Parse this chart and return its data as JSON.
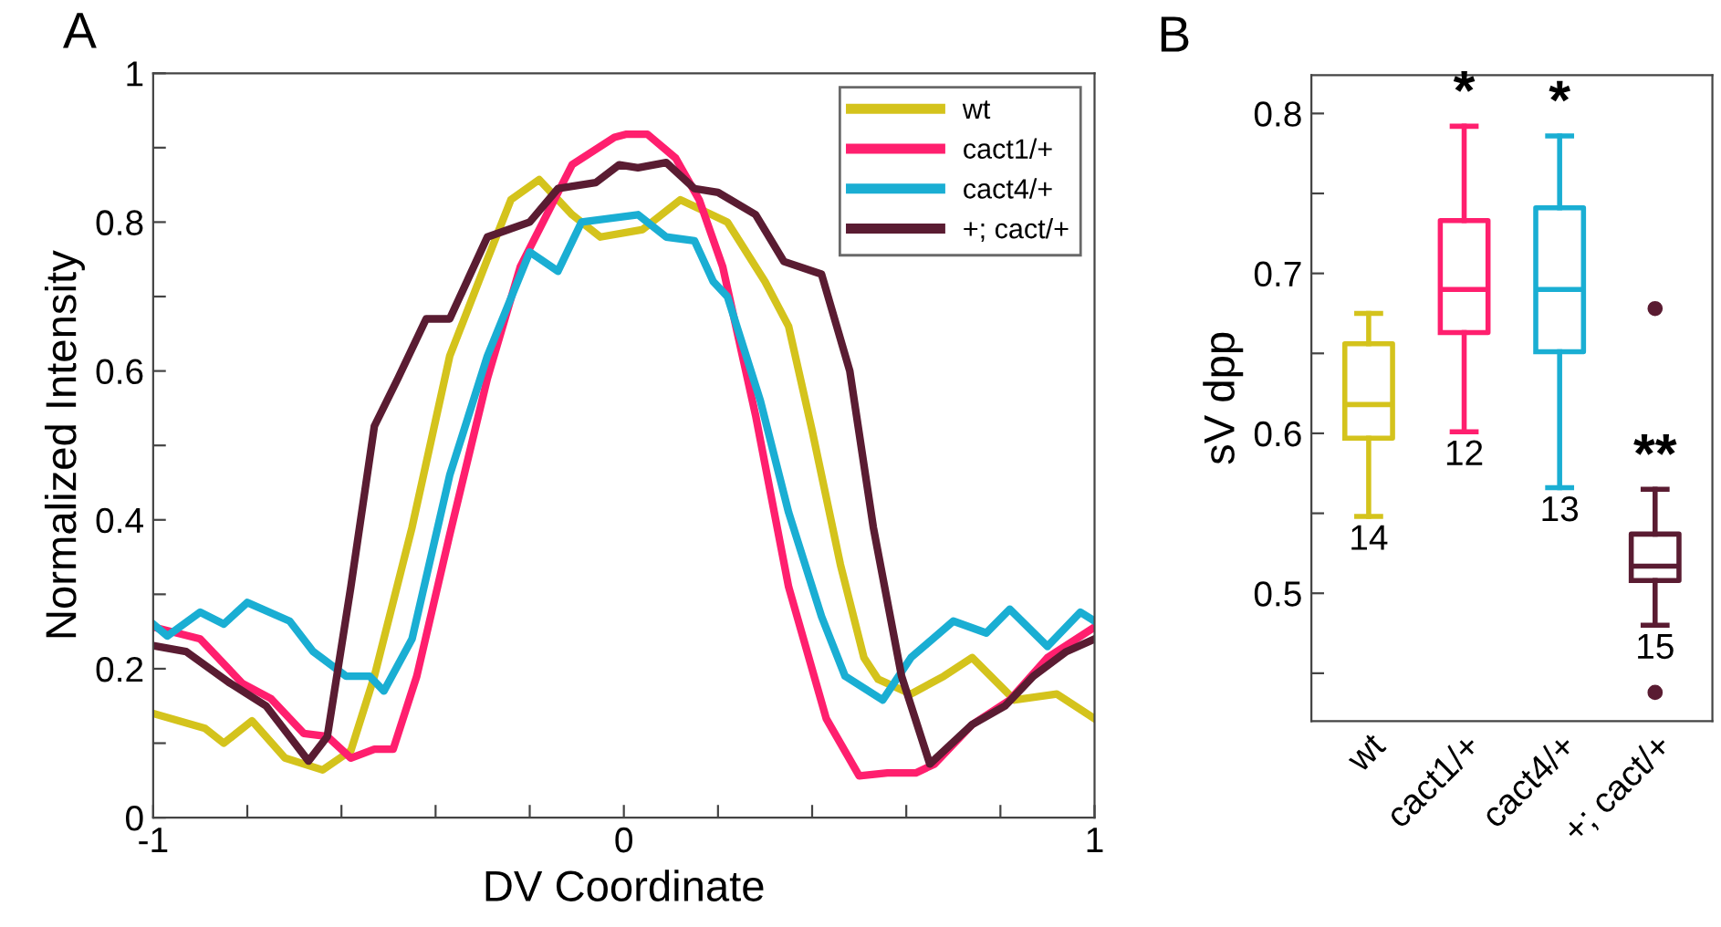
{
  "chart_data": [
    {
      "type": "line",
      "title": "A",
      "xlabel": "DV Coordinate",
      "ylabel": "Normalized Intensity",
      "xlim": [
        -1,
        1
      ],
      "xticks": [
        -1,
        {
          "value": -0.8,
          "label": null
        },
        {
          "value": -0.6,
          "label": null
        },
        {
          "value": -0.4,
          "label": null
        },
        {
          "value": -0.2,
          "label": null
        },
        0,
        {
          "value": 0.2,
          "label": null
        },
        {
          "value": 0.4,
          "label": null
        },
        {
          "value": 0.6,
          "label": null
        },
        {
          "value": 0.8,
          "label": null
        },
        1
      ],
      "ylim": [
        0,
        1
      ],
      "yticks": [
        0,
        {
          "value": 0.1,
          "label": null
        },
        0.2,
        {
          "value": 0.3,
          "label": null
        },
        0.4,
        {
          "value": 0.5,
          "label": null
        },
        0.6,
        {
          "value": 0.7,
          "label": null
        },
        0.8,
        {
          "value": 0.9,
          "label": null
        },
        1
      ],
      "legend": "top right",
      "grid": false,
      "marker": "none",
      "line_style": "solid",
      "series": [
        {
          "name": "wt",
          "color": "#d4c31c",
          "x": [
            -1,
            -0.89,
            -0.85,
            -0.79,
            -0.72,
            -0.64,
            -0.58,
            -0.53,
            -0.45,
            -0.37,
            -0.29,
            -0.24,
            -0.18,
            -0.11,
            -0.05,
            0.04,
            0.12,
            0.22,
            0.3,
            0.35,
            0.4,
            0.46,
            0.51,
            0.54,
            0.61,
            0.68,
            0.74,
            0.83,
            0.92,
            1
          ],
          "values": [
            0.14,
            0.12,
            0.1,
            0.13,
            0.08,
            0.064,
            0.09,
            0.19,
            0.39,
            0.62,
            0.75,
            0.83,
            0.857,
            0.81,
            0.78,
            0.79,
            0.83,
            0.8,
            0.72,
            0.66,
            0.52,
            0.34,
            0.215,
            0.186,
            0.166,
            0.19,
            0.215,
            0.158,
            0.166,
            0.133
          ]
        },
        {
          "name": "cact1/+",
          "color": "#ff1f6e",
          "x": [
            -1,
            -0.9,
            -0.81,
            -0.75,
            -0.68,
            -0.63,
            -0.58,
            -0.53,
            -0.49,
            -0.44,
            -0.37,
            -0.29,
            -0.22,
            -0.11,
            -0.02,
            0.004,
            0.05,
            0.11,
            0.16,
            0.21,
            0.28,
            0.35,
            0.43,
            0.5,
            0.56,
            0.62,
            0.66,
            0.74,
            0.82,
            0.9,
            1
          ],
          "values": [
            0.256,
            0.24,
            0.18,
            0.16,
            0.113,
            0.109,
            0.08,
            0.092,
            0.092,
            0.19,
            0.38,
            0.59,
            0.74,
            0.877,
            0.914,
            0.918,
            0.918,
            0.886,
            0.83,
            0.74,
            0.54,
            0.31,
            0.133,
            0.056,
            0.06,
            0.06,
            0.072,
            0.125,
            0.158,
            0.215,
            0.256
          ]
        },
        {
          "name": "cact4/+",
          "color": "#1aaed3",
          "x": [
            -1,
            -0.97,
            -0.9,
            -0.85,
            -0.8,
            -0.71,
            -0.66,
            -0.59,
            -0.54,
            -0.51,
            -0.45,
            -0.37,
            -0.29,
            -0.2,
            -0.14,
            -0.09,
            0.03,
            0.09,
            0.15,
            0.19,
            0.22,
            0.29,
            0.35,
            0.42,
            0.47,
            0.55,
            0.61,
            0.7,
            0.77,
            0.82,
            0.9,
            0.97,
            1
          ],
          "values": [
            0.26,
            0.244,
            0.276,
            0.26,
            0.289,
            0.264,
            0.223,
            0.19,
            0.19,
            0.17,
            0.24,
            0.46,
            0.62,
            0.76,
            0.734,
            0.8,
            0.81,
            0.78,
            0.775,
            0.72,
            0.7,
            0.56,
            0.41,
            0.27,
            0.19,
            0.158,
            0.215,
            0.264,
            0.248,
            0.28,
            0.23,
            0.276,
            0.264
          ]
        },
        {
          "name": "+; cact/+",
          "color": "#5a1c32",
          "x": [
            -1,
            -0.93,
            -0.84,
            -0.76,
            -0.71,
            -0.67,
            -0.63,
            -0.58,
            -0.53,
            -0.48,
            -0.42,
            -0.37,
            -0.29,
            -0.2,
            -0.14,
            -0.06,
            -0.01,
            0.03,
            0.09,
            0.15,
            0.2,
            0.28,
            0.34,
            0.42,
            0.48,
            0.53,
            0.59,
            0.65,
            0.74,
            0.81,
            0.87,
            0.94,
            1
          ],
          "values": [
            0.231,
            0.223,
            0.182,
            0.15,
            0.109,
            0.076,
            0.109,
            0.31,
            0.526,
            0.59,
            0.67,
            0.67,
            0.78,
            0.8,
            0.845,
            0.853,
            0.877,
            0.873,
            0.88,
            0.845,
            0.84,
            0.81,
            0.747,
            0.73,
            0.6,
            0.39,
            0.19,
            0.072,
            0.125,
            0.15,
            0.19,
            0.223,
            0.24
          ]
        }
      ]
    },
    {
      "type": "box",
      "title": "B",
      "ylabel": "sV dpp",
      "categories": [
        "wt",
        "cact1/+",
        "cact4/+",
        "+; cact/+"
      ],
      "colors": [
        "#d4c31c",
        "#ff1f6e",
        "#1aaed3",
        "#5a1c32"
      ],
      "ylim": [
        0.42,
        0.824
      ],
      "yticks": [
        {
          "value": 0.45,
          "label": null
        },
        0.5,
        {
          "value": 0.55,
          "label": null
        },
        0.6,
        {
          "value": 0.65,
          "label": null
        },
        0.7,
        {
          "value": 0.75,
          "label": null
        },
        0.8
      ],
      "grid": false,
      "boxes": [
        {
          "low": 0.548,
          "q1": 0.597,
          "median": 0.618,
          "q3": 0.656,
          "high": 0.675
        },
        {
          "low": 0.601,
          "q1": 0.663,
          "median": 0.69,
          "q3": 0.733,
          "high": 0.792
        },
        {
          "low": 0.566,
          "q1": 0.651,
          "median": 0.69,
          "q3": 0.741,
          "high": 0.786
        },
        {
          "low": 0.48,
          "q1": 0.508,
          "median": 0.517,
          "q3": 0.537,
          "high": 0.565,
          "outliers": [
            0.678,
            0.438
          ]
        }
      ],
      "annotations": [
        "*",
        "*",
        "**",
        "14",
        "12",
        "13",
        "15"
      ]
    }
  ]
}
